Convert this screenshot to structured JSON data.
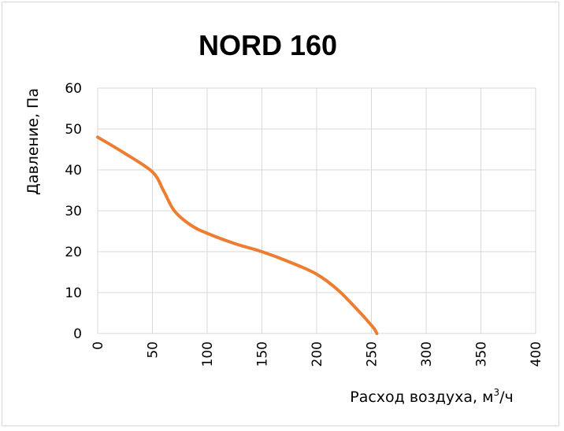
{
  "chart_data": {
    "type": "line",
    "title": "NORD 160",
    "xlabel": "Расход воздуха, м",
    "xlabel_sup": "3",
    "xlabel_suffix": "/ч",
    "ylabel": "Давление, Па",
    "xlim": [
      0,
      400
    ],
    "ylim": [
      0,
      60
    ],
    "x_ticks": [
      "0",
      "50",
      "100",
      "150",
      "200",
      "250",
      "300",
      "350",
      "400"
    ],
    "y_ticks": [
      "0",
      "10",
      "20",
      "30",
      "40",
      "50",
      "60"
    ],
    "grid": true,
    "series": [
      {
        "color": "#ed7d31",
        "x": [
          0,
          25,
          50,
          60,
          70,
          85,
          100,
          125,
          150,
          175,
          200,
          220,
          240,
          250,
          253,
          255
        ],
        "y": [
          48,
          44,
          39.5,
          35,
          30,
          26.5,
          24.5,
          22,
          20,
          17.5,
          14.5,
          10.5,
          5,
          2,
          1,
          0
        ]
      }
    ]
  }
}
